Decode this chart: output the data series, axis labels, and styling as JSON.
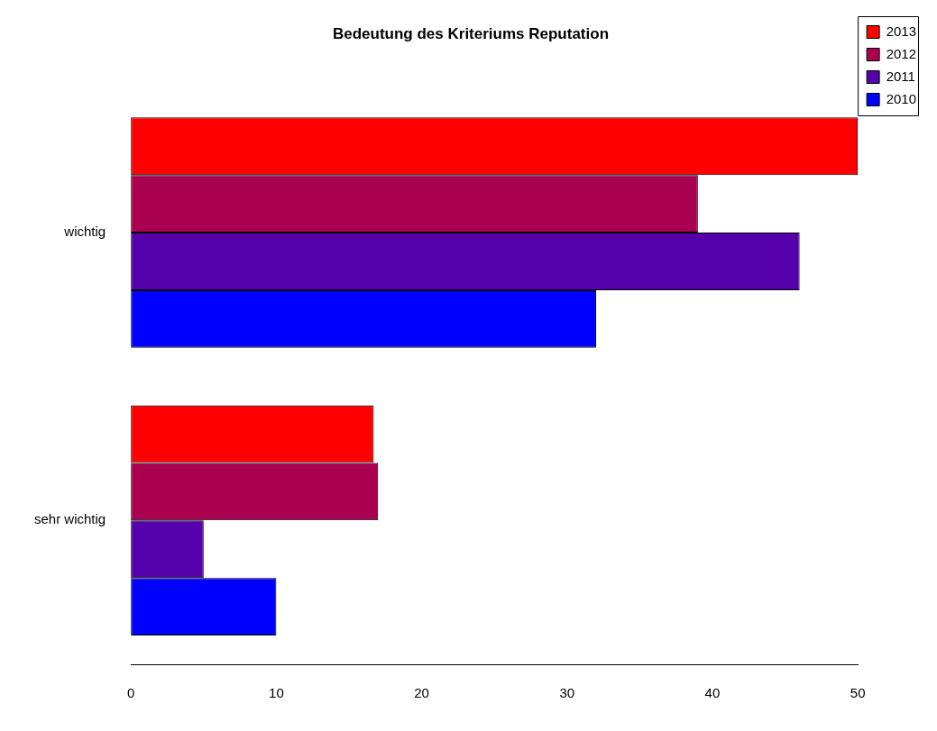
{
  "chart_data": {
    "type": "bar",
    "title": "Bedeutung des Kriteriums Reputation",
    "orientation": "horizontal",
    "categories": [
      "wichtig",
      "sehr wichtig"
    ],
    "series": [
      {
        "name": "2013",
        "color": "#ff0000",
        "values": [
          50,
          16.7
        ]
      },
      {
        "name": "2012",
        "color": "#aa0050",
        "values": [
          39,
          17
        ]
      },
      {
        "name": "2011",
        "color": "#5500aa",
        "values": [
          46,
          5
        ]
      },
      {
        "name": "2010",
        "color": "#0000ff",
        "values": [
          32,
          10
        ]
      }
    ],
    "xlim": [
      0,
      50
    ],
    "xticks": [
      0,
      10,
      20,
      30,
      40,
      50
    ],
    "grid": false,
    "legend": "top right"
  }
}
